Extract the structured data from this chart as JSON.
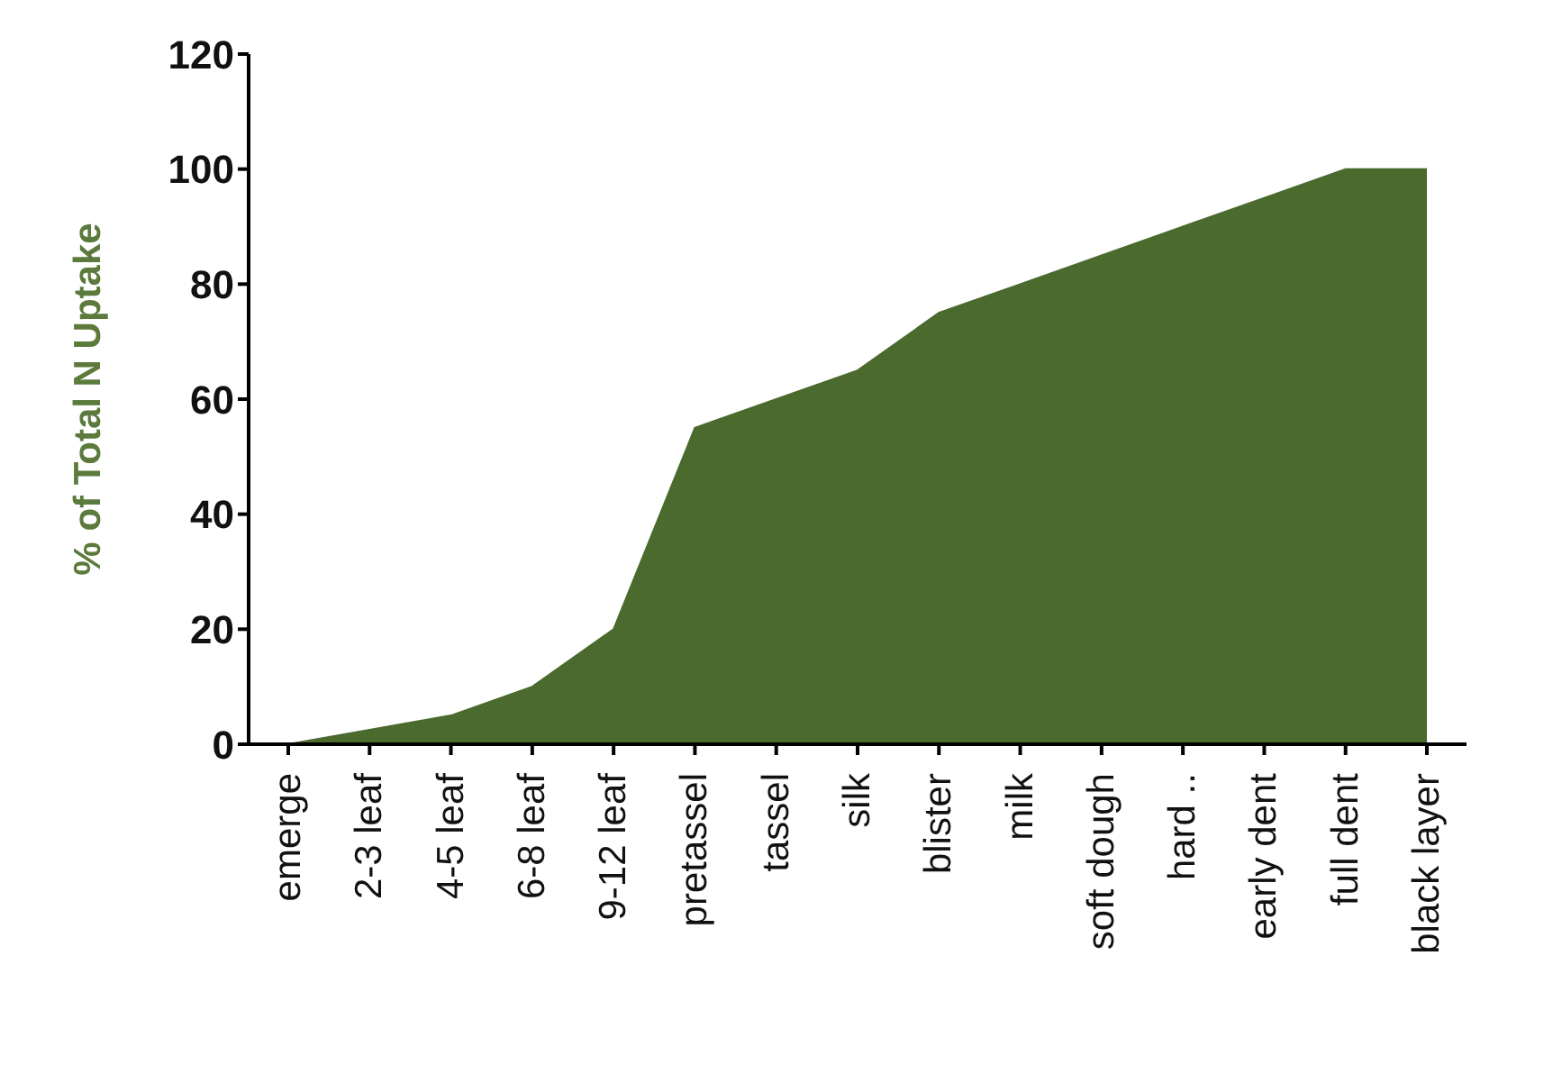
{
  "chart_data": {
    "type": "area",
    "ylabel": "% of Total N Uptake",
    "categories": [
      "emerge",
      "2-3 leaf",
      "4-5 leaf",
      "6-8 leaf",
      "9-12 leaf",
      "pretassel",
      "tassel",
      "silk",
      "blister",
      "milk",
      "soft dough",
      "hard ..",
      "early dent",
      "full dent",
      "black layer"
    ],
    "series": [
      {
        "color": "#4a6a2e",
        "values": [
          0,
          2.5,
          5,
          10,
          20,
          55,
          60,
          65,
          75,
          80,
          85,
          90,
          95,
          100,
          100
        ]
      }
    ],
    "ylim": [
      0,
      120
    ],
    "yticks": [
      0,
      20,
      40,
      60,
      80,
      100,
      120
    ],
    "grid": false,
    "legend": false
  }
}
